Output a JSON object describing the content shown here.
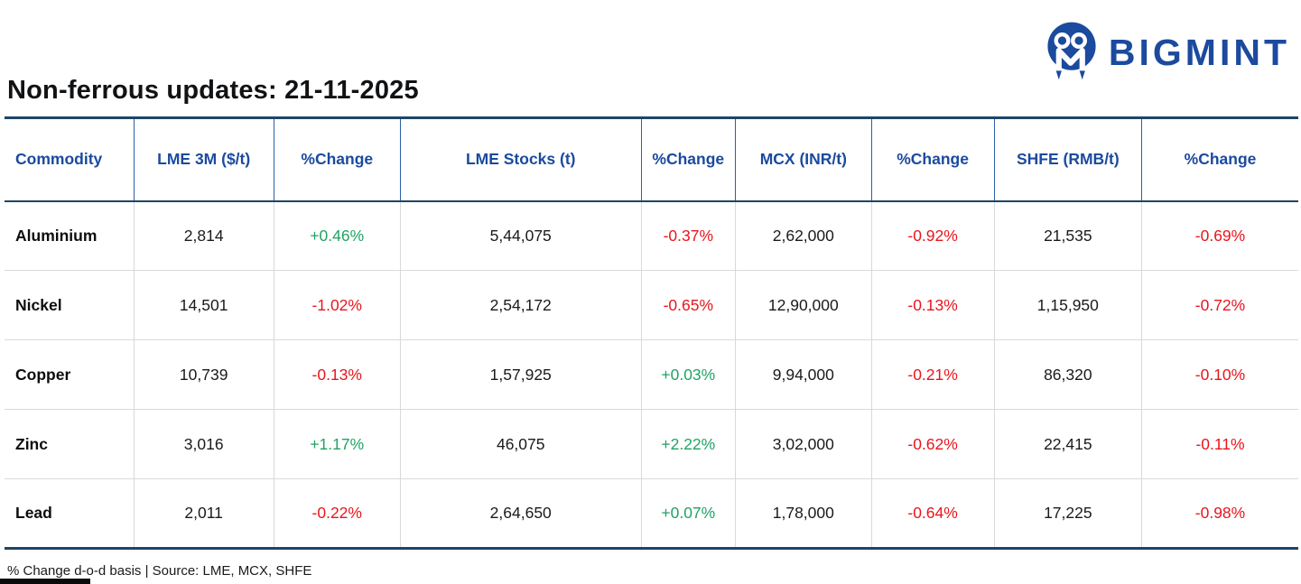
{
  "logo": {
    "text": "BIGMINT",
    "brand_color": "#1b4a9e"
  },
  "title": "Non-ferrous updates: 21-11-2025",
  "colors": {
    "header_text": "#1b4a9e",
    "positive_change": "#1fa363",
    "negative_change": "#e8151c",
    "heavy_border": "#1d4567",
    "header_column_divider": "#2b5faa",
    "row_divider": "#d9d9d9"
  },
  "table": {
    "columns": [
      "Commodity",
      "LME 3M ($/t)",
      "%Change",
      "LME Stocks (t)",
      "%Change",
      "MCX (INR/t)",
      "%Change",
      "SHFE (RMB/t)",
      "%Change"
    ],
    "rows": [
      {
        "commodity": "Aluminium",
        "values": [
          "2,814",
          "+0.46%",
          "5,44,075",
          "-0.37%",
          "2,62,000",
          "-0.92%",
          "21,535",
          "-0.69%"
        ]
      },
      {
        "commodity": "Nickel",
        "values": [
          "14,501",
          "-1.02%",
          "2,54,172",
          "-0.65%",
          "12,90,000",
          "-0.13%",
          "1,15,950",
          "-0.72%"
        ]
      },
      {
        "commodity": "Copper",
        "values": [
          "10,739",
          "-0.13%",
          "1,57,925",
          "+0.03%",
          "9,94,000",
          "-0.21%",
          "86,320",
          "-0.10%"
        ]
      },
      {
        "commodity": "Zinc",
        "values": [
          "3,016",
          "+1.17%",
          "46,075",
          "+2.22%",
          "3,02,000",
          "-0.62%",
          "22,415",
          "-0.11%"
        ]
      },
      {
        "commodity": "Lead",
        "values": [
          "2,011",
          "-0.22%",
          "2,64,650",
          "+0.07%",
          "1,78,000",
          "-0.64%",
          "17,225",
          "-0.98%"
        ]
      }
    ]
  },
  "footer": {
    "note": "% Change d-o-d basis | Source: LME, MCX, SHFE"
  }
}
